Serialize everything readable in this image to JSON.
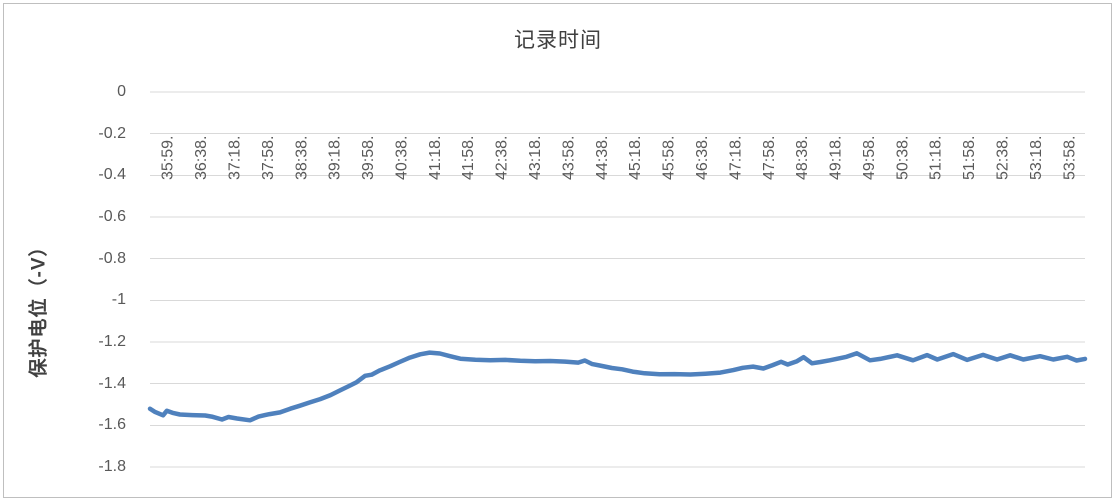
{
  "chart_data": {
    "type": "line",
    "title": "记录时间",
    "xlabel": "",
    "ylabel": "保护电位（-V）",
    "grid": "horizontal",
    "legend": "none",
    "colors": {
      "line": "#4F81BD",
      "gridline": "#D9D9D9",
      "tick_text": "#595959",
      "title_text": "#404040",
      "border": "#BFBFBF"
    },
    "x_axis": {
      "labels": [
        "35:59.",
        "36:38.",
        "37:18.",
        "37:58.",
        "38:38.",
        "39:18.",
        "39:58.",
        "40:38.",
        "41:18.",
        "41:58.",
        "42:38.",
        "43:18.",
        "43:58.",
        "44:38.",
        "45:18.",
        "45:58.",
        "46:38.",
        "47:18.",
        "47:58.",
        "48:38.",
        "49:18.",
        "49:58.",
        "50:38.",
        "51:18.",
        "51:58.",
        "52:38.",
        "53:18.",
        "53:58."
      ]
    },
    "y_axis": {
      "tick_labels": [
        "0",
        "-0.2",
        "-0.4",
        "-0.6",
        "-0.8",
        "-1",
        "-1.2",
        "-1.4",
        "-1.6",
        "-1.8"
      ],
      "tick_values": [
        0,
        -0.2,
        -0.4,
        -0.6,
        -0.8,
        -1,
        -1.2,
        -1.4,
        -1.6,
        -1.8
      ],
      "range": [
        0,
        -1.8
      ]
    },
    "series": [
      {
        "color": "#4F81BD",
        "points": [
          [
            0.0,
            -1.52
          ],
          [
            0.005,
            -1.535
          ],
          [
            0.014,
            -1.552
          ],
          [
            0.018,
            -1.53
          ],
          [
            0.024,
            -1.54
          ],
          [
            0.032,
            -1.548
          ],
          [
            0.045,
            -1.551
          ],
          [
            0.059,
            -1.553
          ],
          [
            0.066,
            -1.558
          ],
          [
            0.077,
            -1.572
          ],
          [
            0.084,
            -1.56
          ],
          [
            0.093,
            -1.567
          ],
          [
            0.107,
            -1.576
          ],
          [
            0.116,
            -1.558
          ],
          [
            0.123,
            -1.551
          ],
          [
            0.128,
            -1.546
          ],
          [
            0.139,
            -1.538
          ],
          [
            0.15,
            -1.52
          ],
          [
            0.16,
            -1.506
          ],
          [
            0.171,
            -1.49
          ],
          [
            0.182,
            -1.474
          ],
          [
            0.193,
            -1.455
          ],
          [
            0.203,
            -1.433
          ],
          [
            0.214,
            -1.409
          ],
          [
            0.221,
            -1.393
          ],
          [
            0.23,
            -1.362
          ],
          [
            0.237,
            -1.357
          ],
          [
            0.246,
            -1.336
          ],
          [
            0.257,
            -1.316
          ],
          [
            0.267,
            -1.296
          ],
          [
            0.278,
            -1.275
          ],
          [
            0.289,
            -1.259
          ],
          [
            0.299,
            -1.251
          ],
          [
            0.31,
            -1.255
          ],
          [
            0.321,
            -1.268
          ],
          [
            0.332,
            -1.28
          ],
          [
            0.348,
            -1.285
          ],
          [
            0.364,
            -1.288
          ],
          [
            0.38,
            -1.286
          ],
          [
            0.396,
            -1.29
          ],
          [
            0.412,
            -1.292
          ],
          [
            0.428,
            -1.291
          ],
          [
            0.444,
            -1.294
          ],
          [
            0.458,
            -1.299
          ],
          [
            0.465,
            -1.289
          ],
          [
            0.473,
            -1.306
          ],
          [
            0.481,
            -1.313
          ],
          [
            0.494,
            -1.325
          ],
          [
            0.505,
            -1.331
          ],
          [
            0.516,
            -1.342
          ],
          [
            0.529,
            -1.35
          ],
          [
            0.545,
            -1.355
          ],
          [
            0.561,
            -1.354
          ],
          [
            0.578,
            -1.356
          ],
          [
            0.594,
            -1.352
          ],
          [
            0.61,
            -1.347
          ],
          [
            0.624,
            -1.335
          ],
          [
            0.634,
            -1.324
          ],
          [
            0.645,
            -1.318
          ],
          [
            0.656,
            -1.327
          ],
          [
            0.666,
            -1.311
          ],
          [
            0.675,
            -1.295
          ],
          [
            0.682,
            -1.308
          ],
          [
            0.692,
            -1.292
          ],
          [
            0.699,
            -1.273
          ],
          [
            0.708,
            -1.302
          ],
          [
            0.717,
            -1.296
          ],
          [
            0.727,
            -1.288
          ],
          [
            0.745,
            -1.271
          ],
          [
            0.756,
            -1.254
          ],
          [
            0.77,
            -1.288
          ],
          [
            0.781,
            -1.281
          ],
          [
            0.799,
            -1.264
          ],
          [
            0.816,
            -1.288
          ],
          [
            0.831,
            -1.263
          ],
          [
            0.842,
            -1.284
          ],
          [
            0.859,
            -1.258
          ],
          [
            0.874,
            -1.286
          ],
          [
            0.891,
            -1.262
          ],
          [
            0.906,
            -1.284
          ],
          [
            0.92,
            -1.264
          ],
          [
            0.934,
            -1.284
          ],
          [
            0.952,
            -1.268
          ],
          [
            0.966,
            -1.284
          ],
          [
            0.981,
            -1.271
          ],
          [
            0.991,
            -1.289
          ],
          [
            1.0,
            -1.281
          ]
        ]
      }
    ]
  }
}
